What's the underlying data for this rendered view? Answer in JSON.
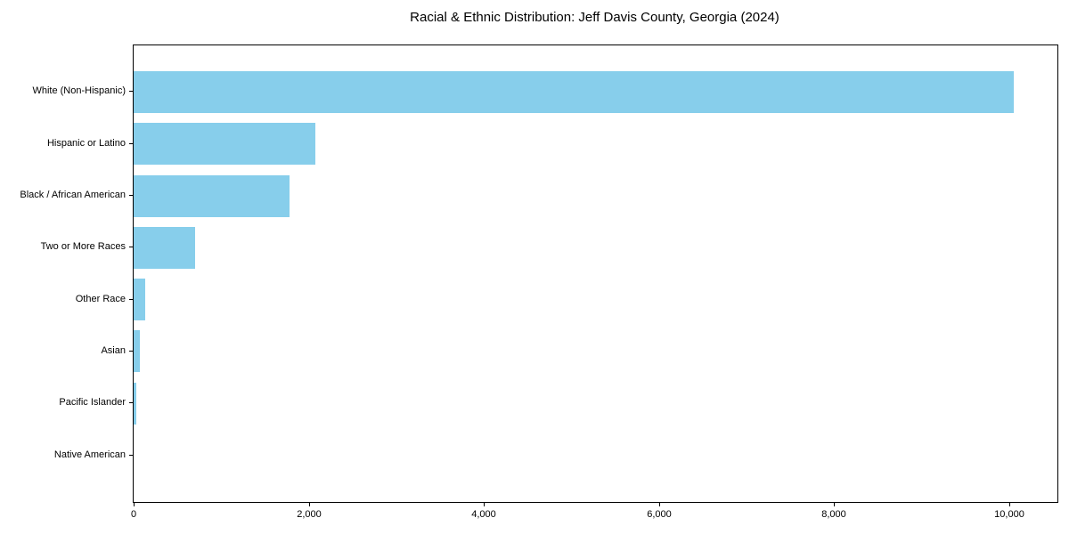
{
  "chart_data": {
    "type": "bar",
    "orientation": "horizontal",
    "title": "Racial & Ethnic Distribution: Jeff Davis County, Georgia (2024)",
    "categories": [
      "White (Non-Hispanic)",
      "Hispanic or Latino",
      "Black / African American",
      "Two or More Races",
      "Other Race",
      "Asian",
      "Pacific Islander",
      "Native American"
    ],
    "values": [
      10050,
      2080,
      1780,
      705,
      130,
      70,
      28,
      0
    ],
    "xlabel": "",
    "ylabel": "",
    "xlim": [
      0,
      10553
    ],
    "x_ticks": [
      0,
      2000,
      4000,
      6000,
      8000,
      10000
    ],
    "x_tick_labels": [
      "0",
      "2,000",
      "4,000",
      "6,000",
      "8,000",
      "10,000"
    ],
    "bar_color": "#87CEEB",
    "grid": false,
    "legend": false,
    "background_color": "#ffffff",
    "spine_color": "#000000"
  }
}
